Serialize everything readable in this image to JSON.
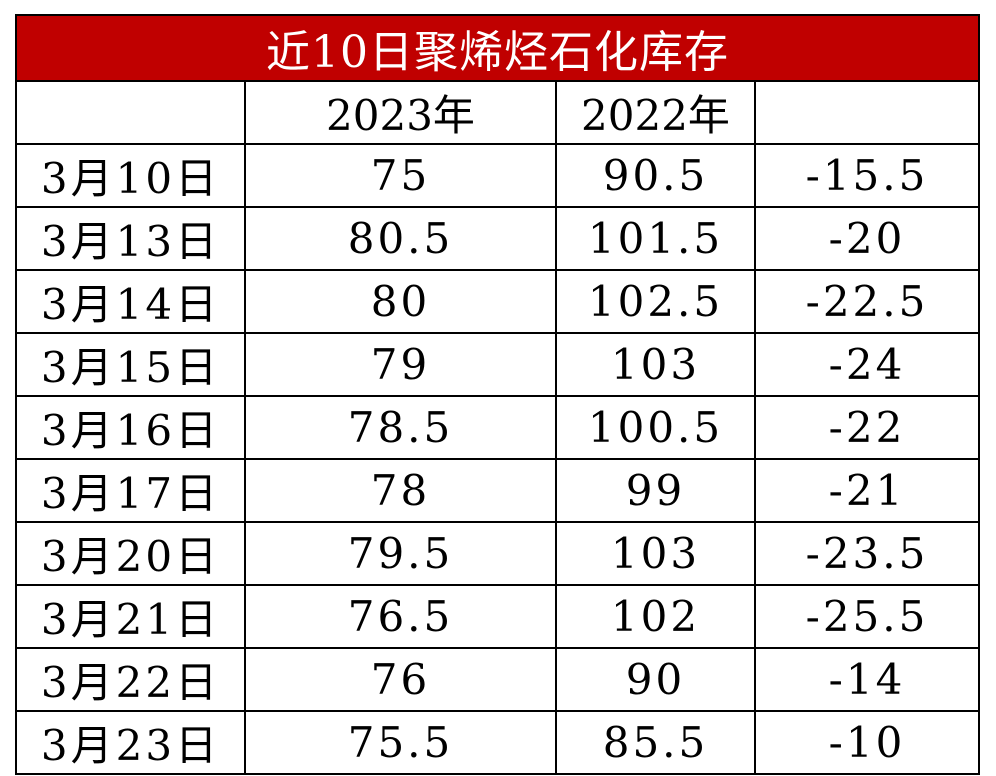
{
  "title": "近10日聚烯烃石化库存",
  "colors": {
    "title_background": "#c00000",
    "title_text": "#ffffff",
    "grid": "#000000",
    "text": "#000000"
  },
  "header": [
    "",
    "2023年",
    "2022年",
    ""
  ],
  "rows": [
    {
      "date": "3月10日",
      "y2023": "75",
      "y2022": "90.5",
      "diff": "-15.5"
    },
    {
      "date": "3月13日",
      "y2023": "80.5",
      "y2022": "101.5",
      "diff": "-20"
    },
    {
      "date": "3月14日",
      "y2023": "80",
      "y2022": "102.5",
      "diff": "-22.5"
    },
    {
      "date": "3月15日",
      "y2023": "79",
      "y2022": "103",
      "diff": "-24"
    },
    {
      "date": "3月16日",
      "y2023": "78.5",
      "y2022": "100.5",
      "diff": "-22"
    },
    {
      "date": "3月17日",
      "y2023": "78",
      "y2022": "99",
      "diff": "-21"
    },
    {
      "date": "3月20日",
      "y2023": "79.5",
      "y2022": "103",
      "diff": "-23.5"
    },
    {
      "date": "3月21日",
      "y2023": "76.5",
      "y2022": "102",
      "diff": "-25.5"
    },
    {
      "date": "3月22日",
      "y2023": "76",
      "y2022": "90",
      "diff": "-14"
    },
    {
      "date": "3月23日",
      "y2023": "75.5",
      "y2022": "85.5",
      "diff": "-10"
    }
  ]
}
